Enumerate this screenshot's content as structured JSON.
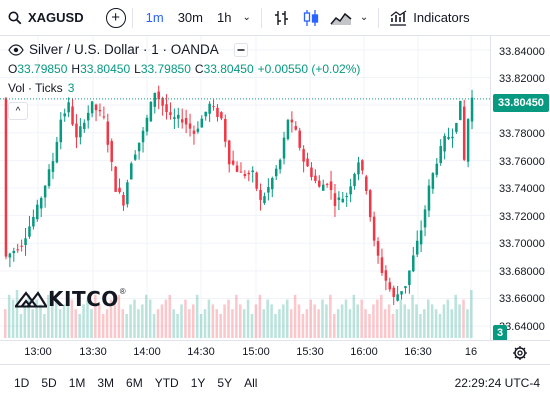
{
  "toolbar": {
    "symbol": "XAGUSD",
    "add_symbol": "+",
    "intervals": [
      "1m",
      "30m",
      "1h"
    ],
    "active_interval": "1m",
    "indicators_label": "Indicators"
  },
  "legend": {
    "title": "Silver / U.S. Dollar · 1 · OANDA",
    "ohlc": {
      "o_label": "O",
      "o": "33.79850",
      "h_label": "H",
      "h": "33.80450",
      "l_label": "L",
      "l": "33.79850",
      "c_label": "C",
      "c": "33.80450",
      "change": "+0.00550 (+0.02%)"
    },
    "volume_label": "Vol · Ticks",
    "volume_value": "3",
    "collapse": "^"
  },
  "logo": "KITCO",
  "price_scale": {
    "labels": [
      "33.84000",
      "33.82000",
      "33.78000",
      "33.76000",
      "33.74000",
      "33.72000",
      "33.70000",
      "33.68000",
      "33.66000",
      "33.64000"
    ],
    "last_price": "33.80450",
    "volume_tag": "3"
  },
  "time_scale": {
    "labels": [
      "13:00",
      "13:30",
      "14:00",
      "14:30",
      "15:00",
      "15:30",
      "16:00",
      "16:30",
      "16"
    ]
  },
  "ranges": [
    "1D",
    "5D",
    "1M",
    "3M",
    "6M",
    "YTD",
    "1Y",
    "5Y",
    "All"
  ],
  "clock": "22:29:24 UTC-4",
  "colors": {
    "up": "#089981",
    "down": "#f23645",
    "accent": "#2962ff"
  },
  "chart_data": {
    "type": "candlestick",
    "ylim": [
      33.63,
      33.85
    ],
    "close_path": [
      [
        0,
        33.69
      ],
      [
        4,
        33.7
      ],
      [
        8,
        33.725
      ],
      [
        12,
        33.76
      ],
      [
        14,
        33.79
      ],
      [
        16,
        33.8
      ],
      [
        18,
        33.775
      ],
      [
        20,
        33.79
      ],
      [
        22,
        33.8
      ],
      [
        25,
        33.79
      ],
      [
        28,
        33.74
      ],
      [
        30,
        33.73
      ],
      [
        32,
        33.76
      ],
      [
        35,
        33.78
      ],
      [
        38,
        33.81
      ],
      [
        40,
        33.8
      ],
      [
        42,
        33.79
      ],
      [
        45,
        33.79
      ],
      [
        48,
        33.78
      ],
      [
        50,
        33.79
      ],
      [
        52,
        33.8
      ],
      [
        55,
        33.79
      ],
      [
        57,
        33.76
      ],
      [
        60,
        33.75
      ],
      [
        63,
        33.75
      ],
      [
        65,
        33.73
      ],
      [
        67,
        33.74
      ],
      [
        70,
        33.76
      ],
      [
        72,
        33.79
      ],
      [
        74,
        33.78
      ],
      [
        76,
        33.76
      ],
      [
        78,
        33.75
      ],
      [
        80,
        33.74
      ],
      [
        82,
        33.745
      ],
      [
        84,
        33.73
      ],
      [
        87,
        33.735
      ],
      [
        90,
        33.76
      ],
      [
        92,
        33.74
      ],
      [
        94,
        33.7
      ],
      [
        96,
        33.68
      ],
      [
        99,
        33.66
      ],
      [
        102,
        33.67
      ],
      [
        104,
        33.69
      ],
      [
        106,
        33.71
      ],
      [
        108,
        33.74
      ],
      [
        110,
        33.76
      ],
      [
        112,
        33.775
      ],
      [
        114,
        33.78
      ],
      [
        116,
        33.8
      ],
      [
        117,
        33.76
      ],
      [
        118,
        33.79
      ],
      [
        119,
        33.805
      ]
    ],
    "volume": [
      0.6,
      0.9,
      0.8,
      1.0,
      0.5,
      0.7,
      0.9,
      0.6,
      0.8,
      0.7,
      0.5,
      0.9,
      1.0,
      0.8,
      0.6,
      0.7,
      0.9,
      0.8,
      0.6,
      0.5,
      0.7,
      0.8,
      0.6,
      0.9,
      0.7,
      0.5,
      0.6,
      0.8,
      0.7,
      0.9,
      0.6,
      0.5,
      0.7,
      0.8,
      0.6,
      0.7,
      0.9,
      0.8,
      0.5,
      0.6,
      0.7,
      0.8,
      0.9,
      0.6,
      0.5,
      0.7,
      0.8,
      0.6,
      0.7,
      0.9,
      0.5,
      0.6,
      0.8,
      0.7,
      0.6,
      0.5,
      0.7,
      0.8,
      0.6,
      0.9,
      0.7,
      0.6,
      0.8,
      0.5,
      0.7,
      0.9,
      0.6,
      0.8,
      0.7,
      0.5,
      0.6,
      0.7,
      0.8,
      0.6,
      0.9,
      0.7,
      0.5,
      0.6,
      0.8,
      0.7,
      0.6,
      0.8,
      0.7,
      0.9,
      0.5,
      0.6,
      0.7,
      0.8,
      0.6,
      0.9,
      0.7,
      0.8,
      0.6,
      0.5,
      0.7,
      0.8,
      0.9,
      0.6,
      0.7,
      0.5,
      0.6,
      0.8,
      0.7,
      0.6,
      0.9,
      0.7,
      0.5,
      0.6,
      0.8,
      0.7,
      0.6,
      0.5,
      0.7,
      0.8,
      0.6,
      0.9,
      0.7,
      0.8,
      0.6,
      1.0
    ]
  }
}
